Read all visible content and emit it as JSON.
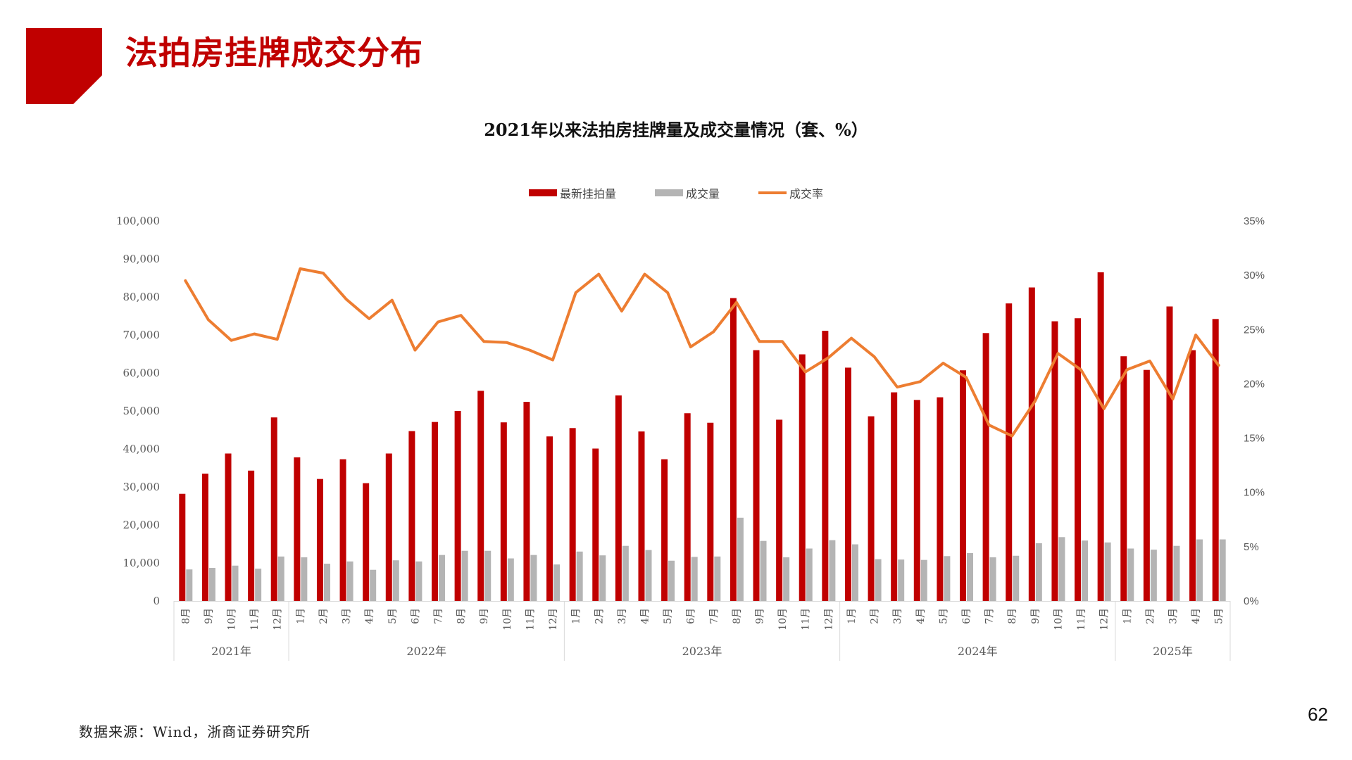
{
  "slide": {
    "title": "法拍房挂牌成交分布",
    "page_number": "62",
    "source": "数据来源：Wind，浙商证券研究所"
  },
  "colors": {
    "brand_red": "#c00000",
    "listing_bar": "#c00000",
    "deal_bar": "#b4b4b4",
    "rate_line": "#ed7d31",
    "axis_text": "#595959"
  },
  "chart_data": {
    "type": "bar",
    "title": "2021年以来法拍房挂牌量及成交量情况（套、%）",
    "categories": [
      "8月",
      "9月",
      "10月",
      "11月",
      "12月",
      "1月",
      "2月",
      "3月",
      "4月",
      "5月",
      "6月",
      "7月",
      "8月",
      "9月",
      "10月",
      "11月",
      "12月",
      "1月",
      "2月",
      "3月",
      "4月",
      "5月",
      "6月",
      "7月",
      "8月",
      "9月",
      "10月",
      "11月",
      "12月",
      "1月",
      "2月",
      "3月",
      "4月",
      "5月",
      "6月",
      "7月",
      "8月",
      "9月",
      "10月",
      "11月",
      "12月",
      "1月",
      "2月",
      "3月",
      "4月",
      "5月"
    ],
    "year_groups": [
      {
        "label": "2021年",
        "count": 5
      },
      {
        "label": "2022年",
        "count": 12
      },
      {
        "label": "2023年",
        "count": 12
      },
      {
        "label": "2024年",
        "count": 12
      },
      {
        "label": "2025年",
        "count": 5
      }
    ],
    "series": [
      {
        "name": "最新挂拍量",
        "type": "bar",
        "axis": "left",
        "values": [
          28200,
          33500,
          38800,
          34300,
          48300,
          37800,
          32100,
          37300,
          31000,
          38800,
          44700,
          47100,
          50000,
          55300,
          47000,
          52400,
          43300,
          45500,
          40100,
          54100,
          44600,
          37300,
          49400,
          46900,
          79700,
          66000,
          47700,
          64900,
          71100,
          61400,
          48600,
          54900,
          52900,
          53600,
          60700,
          70500,
          78300,
          82500,
          73600,
          74400,
          86500,
          64400,
          60800,
          77500,
          66000,
          74200
        ]
      },
      {
        "name": "成交量",
        "type": "bar",
        "axis": "left",
        "values": [
          8300,
          8700,
          9300,
          8500,
          11700,
          11500,
          9800,
          10400,
          8200,
          10700,
          10400,
          12100,
          13200,
          13200,
          11200,
          12100,
          9600,
          13000,
          12000,
          14500,
          13400,
          10600,
          11600,
          11700,
          21900,
          15800,
          11500,
          13800,
          16000,
          14900,
          11000,
          10900,
          10800,
          11800,
          12600,
          11500,
          11900,
          15200,
          16800,
          15900,
          15400,
          13800,
          13500,
          14500,
          16200,
          16200
        ]
      },
      {
        "name": "成交率",
        "type": "line",
        "axis": "right",
        "values": [
          29.5,
          25.9,
          24.0,
          24.6,
          24.1,
          30.6,
          30.2,
          27.8,
          26.0,
          27.7,
          23.1,
          25.7,
          26.3,
          23.9,
          23.8,
          23.1,
          22.2,
          28.4,
          30.1,
          26.7,
          30.1,
          28.4,
          23.4,
          24.8,
          27.5,
          23.9,
          23.9,
          21.1,
          22.4,
          24.2,
          22.5,
          19.7,
          20.2,
          21.9,
          20.6,
          16.2,
          15.2,
          18.4,
          22.8,
          21.3,
          17.7,
          21.3,
          22.1,
          18.6,
          24.5,
          21.7
        ]
      }
    ],
    "y_left": {
      "min": 0,
      "max": 100000,
      "step": 10000,
      "ticks": [
        "0",
        "10,000",
        "20,000",
        "30,000",
        "40,000",
        "50,000",
        "60,000",
        "70,000",
        "80,000",
        "90,000",
        "100,000"
      ]
    },
    "y_right": {
      "min": 0,
      "max": 35,
      "step": 5,
      "ticks": [
        "0%",
        "5%",
        "10%",
        "15%",
        "20%",
        "25%",
        "30%",
        "35%"
      ]
    },
    "legend_position": "top",
    "grid": false
  }
}
